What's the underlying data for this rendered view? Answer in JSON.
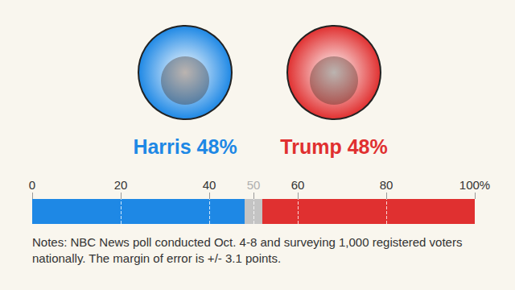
{
  "chart_data": {
    "type": "bar",
    "orientation": "horizontal",
    "stacked": true,
    "categories": [
      null
    ],
    "series": [
      {
        "name": "Harris",
        "color": "#1e88e5",
        "values": [
          48
        ],
        "value_labels": [
          "Harris 48%"
        ]
      },
      {
        "color": "#c4c4c4",
        "values": [
          4
        ]
      },
      {
        "name": "Trump",
        "color": "#e03030",
        "values": [
          48
        ],
        "value_labels": [
          "Trump 48%"
        ]
      }
    ],
    "xlim": [
      0,
      100
    ],
    "xticks": [
      0,
      20,
      40,
      50,
      60,
      80,
      {
        "value": 100,
        "label": "100%"
      }
    ],
    "tick_labels": "x",
    "grid": true,
    "note": "Notes: NBC News poll conducted Oct. 4-8 and surveying 1,000 registered voters nationally. The margin of error is +/- 3.1 points."
  }
}
